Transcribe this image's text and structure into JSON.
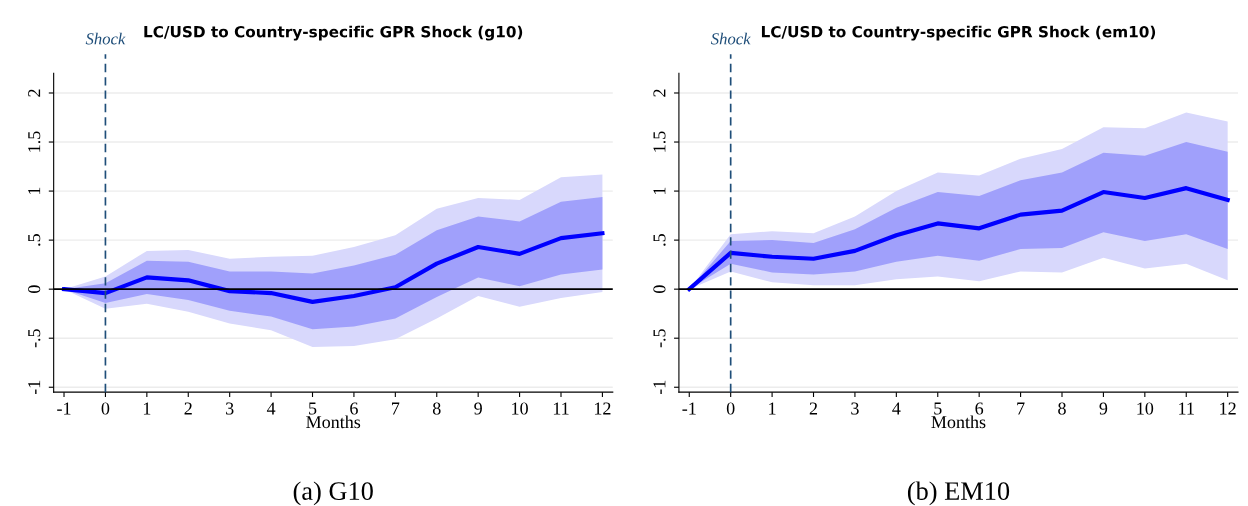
{
  "chart_data": [
    {
      "type": "line",
      "title": "LC/USD to Country-specific GPR Shock (g10)",
      "xlabel": "Months",
      "x": [
        -1,
        0,
        1,
        2,
        3,
        4,
        5,
        6,
        7,
        8,
        9,
        10,
        11,
        12
      ],
      "series": [
        {
          "color": "#d8d8fc",
          "values": [
            null,
            null,
            null,
            null,
            null,
            null,
            null,
            null,
            null,
            null,
            null,
            null,
            null,
            null
          ],
          "lower": [
            0,
            -0.2,
            -0.15,
            -0.23,
            -0.35,
            -0.42,
            -0.59,
            -0.58,
            -0.51,
            -0.3,
            -0.07,
            -0.18,
            -0.09,
            -0.03
          ],
          "upper": [
            0,
            0.13,
            0.39,
            0.4,
            0.31,
            0.33,
            0.34,
            0.43,
            0.55,
            0.82,
            0.93,
            0.91,
            1.14,
            1.17
          ]
        },
        {
          "color": "#a0a0fb",
          "values": [
            null,
            null,
            null,
            null,
            null,
            null,
            null,
            null,
            null,
            null,
            null,
            null,
            null,
            null
          ],
          "lower": [
            0,
            -0.14,
            -0.05,
            -0.11,
            -0.22,
            -0.28,
            -0.41,
            -0.38,
            -0.3,
            -0.08,
            0.12,
            0.03,
            0.15,
            0.2
          ],
          "upper": [
            0,
            0.06,
            0.29,
            0.28,
            0.18,
            0.18,
            0.16,
            0.24,
            0.35,
            0.6,
            0.74,
            0.69,
            0.89,
            0.94
          ]
        },
        {
          "color": "#0000ff",
          "values": [
            0,
            -0.04,
            0.12,
            0.09,
            -0.02,
            -0.04,
            -0.13,
            -0.07,
            0.02,
            0.26,
            0.43,
            0.36,
            0.52,
            0.57
          ]
        }
      ],
      "xlim": [
        -1.25,
        12.25
      ],
      "xticks": [
        -1,
        0,
        1,
        2,
        3,
        4,
        5,
        6,
        7,
        8,
        9,
        10,
        11,
        12
      ],
      "ylim": [
        -1.05,
        2.2
      ],
      "yticks": [
        {
          "value": -1,
          "label": "-1"
        },
        {
          "value": -0.5,
          "label": "-.5"
        },
        0,
        {
          "value": 0.5,
          "label": ".5"
        },
        1,
        1.5,
        2
      ],
      "ref_lines": [
        {
          "axis": "x",
          "value": 0,
          "label": "Shock",
          "color": "#1f4e79",
          "line_style": "dashed"
        },
        {
          "axis": "y",
          "value": 0,
          "color": "#000000",
          "line_style": "solid"
        }
      ],
      "grid": "y",
      "legend": false,
      "marker": "none",
      "line_style": "solid",
      "annotations": [
        "(a) G10"
      ]
    },
    {
      "type": "line",
      "title": "LC/USD to Country-specific GPR Shock (em10)",
      "xlabel": "Months",
      "x": [
        -1,
        0,
        1,
        2,
        3,
        4,
        5,
        6,
        7,
        8,
        9,
        10,
        11,
        12
      ],
      "series": [
        {
          "color": "#d8d8fc",
          "values": [
            null,
            null,
            null,
            null,
            null,
            null,
            null,
            null,
            null,
            null,
            null,
            null,
            null,
            null
          ],
          "lower": [
            0,
            0.18,
            0.07,
            0.04,
            0.04,
            0.1,
            0.13,
            0.08,
            0.18,
            0.17,
            0.32,
            0.21,
            0.26,
            0.09
          ],
          "upper": [
            0,
            0.56,
            0.59,
            0.57,
            0.74,
            1.0,
            1.19,
            1.16,
            1.33,
            1.43,
            1.65,
            1.64,
            1.8,
            1.71
          ]
        },
        {
          "color": "#a0a0fb",
          "values": [
            null,
            null,
            null,
            null,
            null,
            null,
            null,
            null,
            null,
            null,
            null,
            null,
            null,
            null
          ],
          "lower": [
            0,
            0.26,
            0.17,
            0.15,
            0.18,
            0.28,
            0.34,
            0.29,
            0.41,
            0.42,
            0.58,
            0.49,
            0.56,
            0.41
          ],
          "upper": [
            0,
            0.49,
            0.5,
            0.47,
            0.61,
            0.83,
            0.99,
            0.95,
            1.11,
            1.19,
            1.39,
            1.36,
            1.5,
            1.4
          ]
        },
        {
          "color": "#0000ff",
          "values": [
            0,
            0.37,
            0.33,
            0.31,
            0.39,
            0.55,
            0.67,
            0.62,
            0.76,
            0.8,
            0.99,
            0.93,
            1.03,
            0.91
          ]
        }
      ],
      "xlim": [
        -1.25,
        12.25
      ],
      "xticks": [
        -1,
        0,
        1,
        2,
        3,
        4,
        5,
        6,
        7,
        8,
        9,
        10,
        11,
        12
      ],
      "ylim": [
        -1.05,
        2.2
      ],
      "yticks": [
        {
          "value": -1,
          "label": "-1"
        },
        {
          "value": -0.5,
          "label": "-.5"
        },
        0,
        {
          "value": 0.5,
          "label": ".5"
        },
        1,
        1.5,
        2
      ],
      "ref_lines": [
        {
          "axis": "x",
          "value": 0,
          "label": "Shock",
          "color": "#1f4e79",
          "line_style": "dashed"
        },
        {
          "axis": "y",
          "value": 0,
          "color": "#000000",
          "line_style": "solid"
        }
      ],
      "grid": "y",
      "legend": false,
      "marker": "none",
      "line_style": "solid",
      "annotations": [
        "(b) EM10"
      ]
    }
  ]
}
